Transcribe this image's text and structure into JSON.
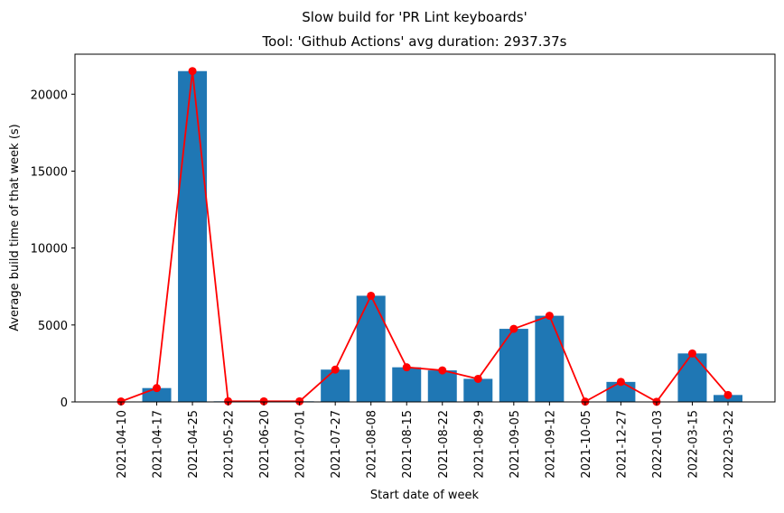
{
  "chart_data": {
    "type": "bar",
    "suptitle": "Slow build for 'PR Lint keyboards'",
    "title": "Tool: 'Github Actions' avg duration: 2937.37s",
    "xlabel": "Start date of week",
    "ylabel": "Average build time of that week (s)",
    "ylim": [
      0,
      22600
    ],
    "yticks": [
      0,
      5000,
      10000,
      15000,
      20000
    ],
    "grid": false,
    "categories": [
      "2021-04-10",
      "2021-04-17",
      "2021-04-25",
      "2021-05-22",
      "2021-06-20",
      "2021-07-01",
      "2021-07-27",
      "2021-08-08",
      "2021-08-15",
      "2021-08-22",
      "2021-08-29",
      "2021-09-05",
      "2021-09-12",
      "2021-10-05",
      "2021-12-27",
      "2022-01-03",
      "2022-03-15",
      "2022-03-22"
    ],
    "series": [
      {
        "type": "bar",
        "color": "#1f77b4",
        "values": [
          30,
          900,
          21500,
          40,
          40,
          40,
          2100,
          6900,
          2250,
          2050,
          1500,
          4750,
          5600,
          20,
          1300,
          10,
          3150,
          450
        ]
      },
      {
        "type": "line",
        "color": "#ff0000",
        "marker": "circle",
        "values": [
          30,
          900,
          21500,
          40,
          40,
          40,
          2100,
          6900,
          2250,
          2050,
          1500,
          4750,
          5600,
          20,
          1300,
          10,
          3150,
          450
        ]
      }
    ]
  }
}
